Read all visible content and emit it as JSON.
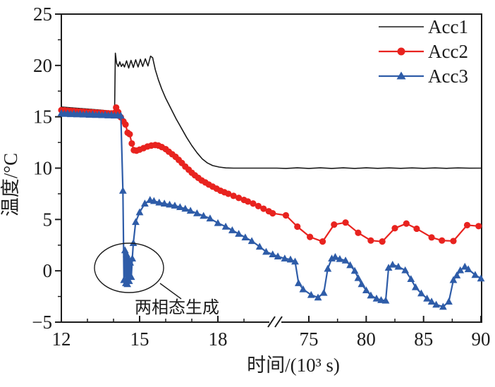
{
  "figure": {
    "y_axis": {
      "label": "温度/°C",
      "tick_values": [
        25,
        20,
        15,
        10,
        5,
        0,
        -5
      ],
      "tick_labels": [
        "25",
        "20",
        "15",
        "10",
        "5",
        "0",
        "−5"
      ],
      "minor_tick_values": [
        22.5,
        17.5,
        12.5,
        7.5,
        2.5,
        -2.5
      ],
      "range": [
        -5,
        25
      ]
    },
    "x_axis": {
      "label": "时间/(10³ s)",
      "left_tick_values": [
        12,
        15,
        18
      ],
      "left_tick_labels": [
        "12",
        "15",
        "18"
      ],
      "left_minor_tick_values": [
        13,
        14,
        16,
        17,
        19
      ],
      "right_tick_values": [
        75,
        80,
        85,
        90
      ],
      "right_tick_labels": [
        "75",
        "80",
        "85",
        "90"
      ],
      "right_minor_tick_values": [
        77.5,
        82.5,
        87.5
      ],
      "break_symbol": "//",
      "left_range": [
        12,
        20.2
      ],
      "right_range": [
        71.8,
        90
      ]
    },
    "annotation": {
      "text": "两相态生成"
    },
    "colors": {
      "axis": "#1c1c1c",
      "acc1": "#1a1a1a",
      "acc2": "#e8231f",
      "acc3": "#2e5ca8"
    }
  },
  "chart_data": {
    "type": "line",
    "title": "",
    "xlabel": "时间/(10³ s)",
    "ylabel": "温度/°C",
    "ylim": [
      -5,
      25
    ],
    "x_break": {
      "left_range": [
        12,
        20.2
      ],
      "right_range": [
        71.8,
        90
      ],
      "note": "axis break between ~20 and ~72 (10³ s)"
    },
    "legend_position": "top-right-inside",
    "grid": false,
    "series": [
      {
        "name": "Acc1",
        "color": "#1a1a1a",
        "marker": "none",
        "line_width": 1.6,
        "points": [
          [
            12,
            15.95
          ],
          [
            12.5,
            15.85
          ],
          [
            13,
            15.75
          ],
          [
            13.5,
            15.65
          ],
          [
            13.9,
            15.55
          ],
          [
            14.04,
            15.5
          ],
          [
            14.07,
            21.2
          ],
          [
            14.12,
            20.2
          ],
          [
            14.18,
            19.9
          ],
          [
            14.24,
            20.35
          ],
          [
            14.3,
            19.9
          ],
          [
            14.36,
            20.15
          ],
          [
            14.42,
            19.85
          ],
          [
            14.5,
            20.45
          ],
          [
            14.58,
            19.75
          ],
          [
            14.67,
            20.5
          ],
          [
            14.76,
            19.8
          ],
          [
            14.85,
            20.55
          ],
          [
            14.94,
            19.85
          ],
          [
            15.03,
            20.6
          ],
          [
            15.12,
            19.9
          ],
          [
            15.22,
            20.65
          ],
          [
            15.32,
            19.95
          ],
          [
            15.42,
            20.9
          ],
          [
            15.5,
            20.75
          ],
          [
            15.6,
            19.6
          ],
          [
            15.72,
            18.6
          ],
          [
            15.85,
            17.7
          ],
          [
            16.0,
            16.8
          ],
          [
            16.2,
            15.8
          ],
          [
            16.4,
            14.8
          ],
          [
            16.6,
            13.9
          ],
          [
            16.8,
            13.0
          ],
          [
            17.0,
            12.2
          ],
          [
            17.2,
            11.5
          ],
          [
            17.4,
            10.9
          ],
          [
            17.6,
            10.5
          ],
          [
            17.8,
            10.25
          ],
          [
            18.05,
            10.1
          ],
          [
            18.3,
            10.02
          ],
          [
            18.6,
            10.0
          ],
          [
            19.0,
            10.0
          ],
          [
            19.5,
            10.0
          ],
          [
            20.1,
            10.0
          ],
          [
            72.2,
            10.0
          ],
          [
            73,
            9.97
          ],
          [
            74,
            10.03
          ],
          [
            75,
            9.97
          ],
          [
            76,
            10.03
          ],
          [
            77,
            9.97
          ],
          [
            78,
            10.03
          ],
          [
            79,
            9.97
          ],
          [
            80,
            10.03
          ],
          [
            81,
            9.98
          ],
          [
            82,
            10.02
          ],
          [
            83,
            9.98
          ],
          [
            84,
            10.02
          ],
          [
            85,
            9.98
          ],
          [
            86,
            10.02
          ],
          [
            87,
            9.98
          ],
          [
            88,
            10.02
          ],
          [
            89,
            9.99
          ],
          [
            90,
            10.0
          ]
        ]
      },
      {
        "name": "Acc2",
        "color": "#e8231f",
        "marker": "circle",
        "line_width": 2.2,
        "points": [
          [
            12,
            15.65
          ],
          [
            12.12,
            15.63
          ],
          [
            12.24,
            15.6
          ],
          [
            12.36,
            15.58
          ],
          [
            12.48,
            15.56
          ],
          [
            12.6,
            15.54
          ],
          [
            12.72,
            15.52
          ],
          [
            12.84,
            15.5
          ],
          [
            12.96,
            15.48
          ],
          [
            13.08,
            15.46
          ],
          [
            13.2,
            15.44
          ],
          [
            13.32,
            15.42
          ],
          [
            13.44,
            15.4
          ],
          [
            13.56,
            15.38
          ],
          [
            13.68,
            15.36
          ],
          [
            13.8,
            15.34
          ],
          [
            13.92,
            15.33
          ],
          [
            14.04,
            15.38
          ],
          [
            14.1,
            15.9
          ],
          [
            14.18,
            15.45
          ],
          [
            14.28,
            14.95
          ],
          [
            14.38,
            14.55
          ],
          [
            14.46,
            14.25
          ],
          [
            14.54,
            13.45
          ],
          [
            14.62,
            13.3
          ],
          [
            14.7,
            12.4
          ],
          [
            14.78,
            11.75
          ],
          [
            14.88,
            11.7
          ],
          [
            15.0,
            11.8
          ],
          [
            15.15,
            11.95
          ],
          [
            15.3,
            12.1
          ],
          [
            15.45,
            12.2
          ],
          [
            15.6,
            12.25
          ],
          [
            15.72,
            12.2
          ],
          [
            15.85,
            12.05
          ],
          [
            16.0,
            11.85
          ],
          [
            16.12,
            11.6
          ],
          [
            16.25,
            11.35
          ],
          [
            16.38,
            11.1
          ],
          [
            16.5,
            10.8
          ],
          [
            16.62,
            10.5
          ],
          [
            16.75,
            10.15
          ],
          [
            16.88,
            9.85
          ],
          [
            17.0,
            9.55
          ],
          [
            17.12,
            9.3
          ],
          [
            17.25,
            9.05
          ],
          [
            17.38,
            8.8
          ],
          [
            17.52,
            8.6
          ],
          [
            17.65,
            8.4
          ],
          [
            17.8,
            8.2
          ],
          [
            17.95,
            8.0
          ],
          [
            18.1,
            7.8
          ],
          [
            18.25,
            7.65
          ],
          [
            18.4,
            7.5
          ],
          [
            18.6,
            7.3
          ],
          [
            18.8,
            7.1
          ],
          [
            19.0,
            6.9
          ],
          [
            19.15,
            6.75
          ],
          [
            19.35,
            6.55
          ],
          [
            19.55,
            6.3
          ],
          [
            19.75,
            6.05
          ],
          [
            19.95,
            5.8
          ],
          [
            20.1,
            5.6
          ],
          [
            73.0,
            5.4
          ],
          [
            74.0,
            4.3
          ],
          [
            75.1,
            3.3
          ],
          [
            76.2,
            2.85
          ],
          [
            77.2,
            4.5
          ],
          [
            78.2,
            4.7
          ],
          [
            79.3,
            3.7
          ],
          [
            80.4,
            2.95
          ],
          [
            81.4,
            2.85
          ],
          [
            82.5,
            4.15
          ],
          [
            83.5,
            4.6
          ],
          [
            84.4,
            4.1
          ],
          [
            85.7,
            3.25
          ],
          [
            86.6,
            2.95
          ],
          [
            87.6,
            2.9
          ],
          [
            88.8,
            4.45
          ],
          [
            89.8,
            4.35
          ]
        ]
      },
      {
        "name": "Acc3",
        "color": "#2e5ca8",
        "marker": "triangle",
        "line_width": 2.2,
        "points": [
          [
            12,
            15.35
          ],
          [
            12.12,
            15.28
          ],
          [
            12.24,
            15.33
          ],
          [
            12.36,
            15.26
          ],
          [
            12.48,
            15.31
          ],
          [
            12.6,
            15.24
          ],
          [
            12.72,
            15.29
          ],
          [
            12.84,
            15.22
          ],
          [
            12.96,
            15.27
          ],
          [
            13.08,
            15.2
          ],
          [
            13.2,
            15.25
          ],
          [
            13.32,
            15.18
          ],
          [
            13.44,
            15.23
          ],
          [
            13.56,
            15.16
          ],
          [
            13.68,
            15.21
          ],
          [
            13.8,
            15.14
          ],
          [
            13.92,
            15.19
          ],
          [
            14.04,
            15.12
          ],
          [
            14.16,
            15.15
          ],
          [
            14.28,
            15.1
          ],
          [
            14.36,
            7.8
          ],
          [
            14.4,
            -0.9
          ],
          [
            14.44,
            2.0
          ],
          [
            14.47,
            -1.2
          ],
          [
            14.5,
            1.6
          ],
          [
            14.53,
            -1.3
          ],
          [
            14.57,
            1.2
          ],
          [
            14.6,
            -1.0
          ],
          [
            14.64,
            0.8
          ],
          [
            14.68,
            -0.6
          ],
          [
            14.72,
            1.2
          ],
          [
            14.76,
            2.7
          ],
          [
            14.85,
            4.75
          ],
          [
            15.0,
            5.7
          ],
          [
            15.2,
            6.55
          ],
          [
            15.4,
            6.9
          ],
          [
            15.55,
            6.8
          ],
          [
            15.75,
            6.65
          ],
          [
            15.95,
            6.55
          ],
          [
            16.15,
            6.45
          ],
          [
            16.35,
            6.35
          ],
          [
            16.55,
            6.2
          ],
          [
            16.75,
            6.05
          ],
          [
            16.95,
            5.85
          ],
          [
            17.2,
            5.6
          ],
          [
            17.45,
            5.35
          ],
          [
            17.7,
            5.1
          ],
          [
            18.0,
            4.65
          ],
          [
            18.3,
            4.3
          ],
          [
            18.55,
            3.95
          ],
          [
            18.8,
            3.6
          ],
          [
            19.05,
            3.25
          ],
          [
            19.3,
            2.9
          ],
          [
            19.6,
            2.35
          ],
          [
            19.85,
            1.85
          ],
          [
            20.1,
            1.6
          ],
          [
            72.3,
            1.4
          ],
          [
            72.9,
            1.2
          ],
          [
            73.4,
            1.1
          ],
          [
            73.8,
            0.9
          ],
          [
            74.1,
            -1.2
          ],
          [
            74.5,
            -1.8
          ],
          [
            75.2,
            -2.35
          ],
          [
            75.8,
            -2.6
          ],
          [
            76.3,
            -2.15
          ],
          [
            76.65,
            0.2
          ],
          [
            77.0,
            1.2
          ],
          [
            77.3,
            1.35
          ],
          [
            77.7,
            1.15
          ],
          [
            78.2,
            1.0
          ],
          [
            78.6,
            0.55
          ],
          [
            79.0,
            0.0
          ],
          [
            79.3,
            -0.7
          ],
          [
            79.6,
            -1.3
          ],
          [
            80.0,
            -1.9
          ],
          [
            80.4,
            -2.4
          ],
          [
            80.9,
            -2.7
          ],
          [
            81.3,
            -2.85
          ],
          [
            81.7,
            -2.9
          ],
          [
            81.95,
            0.3
          ],
          [
            82.3,
            0.6
          ],
          [
            82.8,
            0.4
          ],
          [
            83.4,
            0.05
          ],
          [
            83.9,
            -0.8
          ],
          [
            84.3,
            -1.6
          ],
          [
            84.8,
            -2.2
          ],
          [
            85.3,
            -2.7
          ],
          [
            85.7,
            -3.0
          ],
          [
            86.1,
            -3.3
          ],
          [
            86.7,
            -3.5
          ],
          [
            87.2,
            -3.0
          ],
          [
            87.6,
            -0.9
          ],
          [
            87.9,
            -0.45
          ],
          [
            88.2,
            0.05
          ],
          [
            88.6,
            0.4
          ],
          [
            88.9,
            0.15
          ],
          [
            89.5,
            -0.4
          ],
          [
            90,
            -0.75
          ]
        ]
      }
    ],
    "annotations": [
      {
        "text": "两相态生成",
        "target": "Acc3 downward spike cluster",
        "t_center": 14.55,
        "T_center": 0.3
      }
    ]
  }
}
